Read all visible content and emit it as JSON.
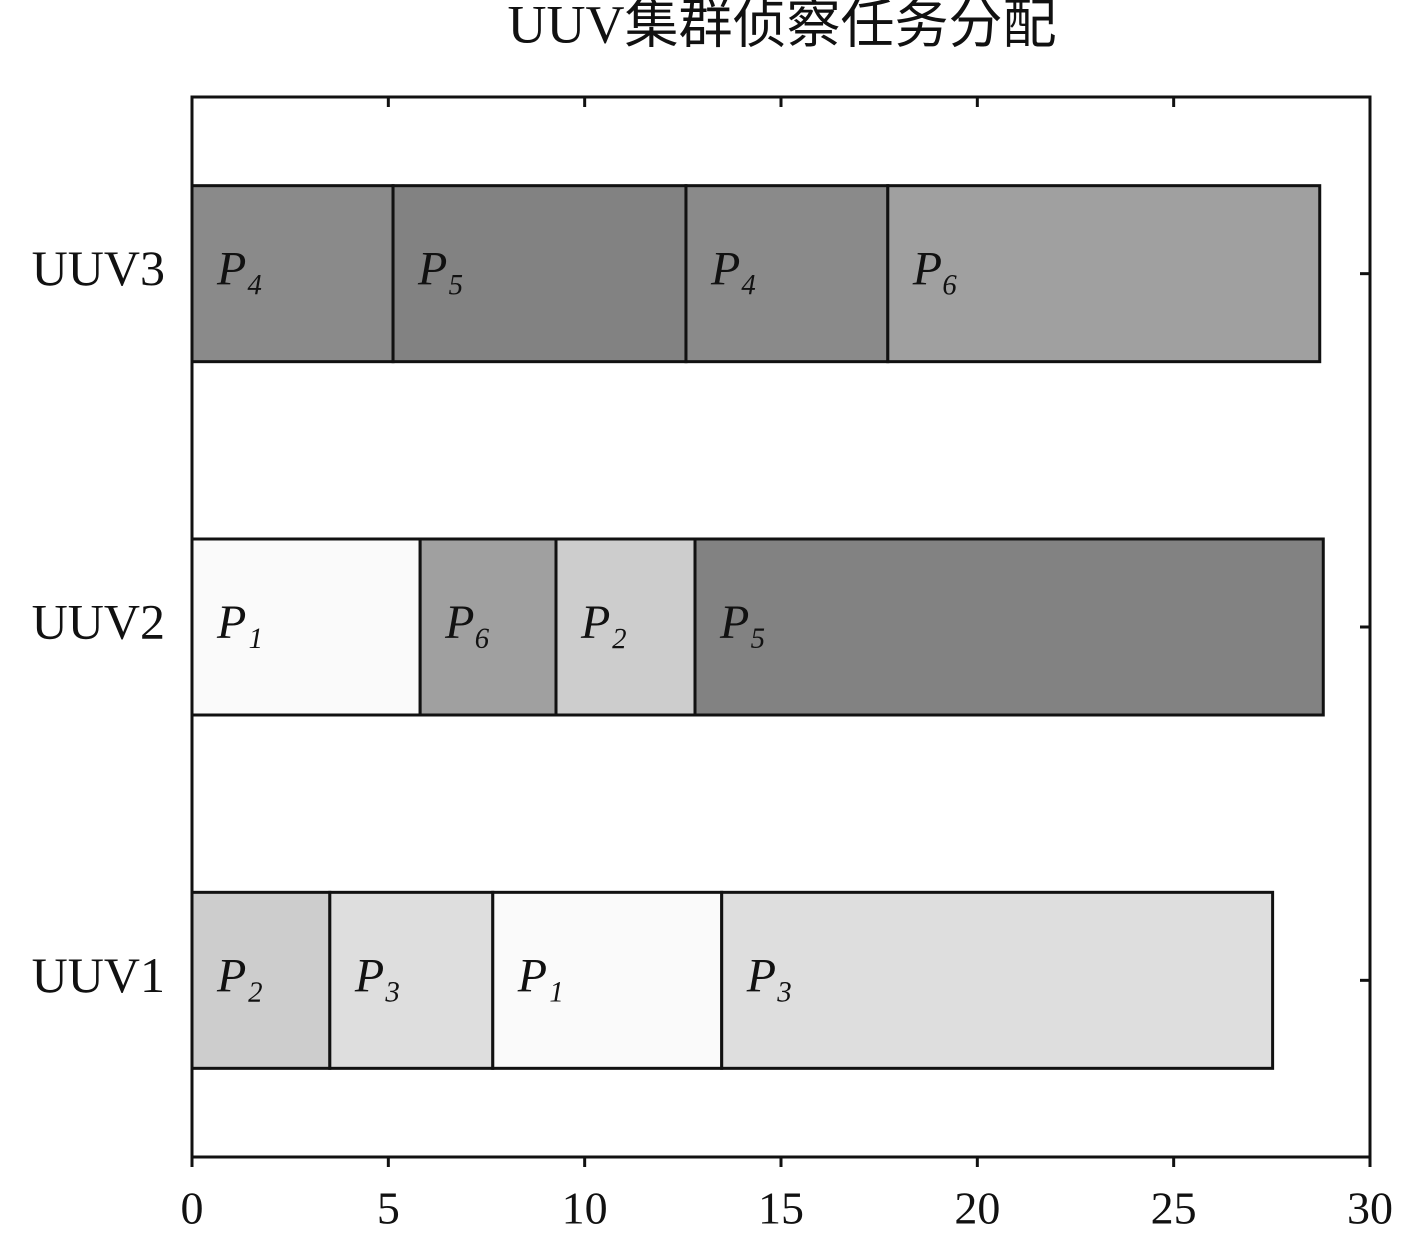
{
  "chart_data": {
    "type": "gantt",
    "title": "UUV集群侦察任务分配",
    "categories": [
      "UUV1",
      "UUV2",
      "UUV3"
    ],
    "rows": [
      {
        "segments": [
          {
            "task": "P₂",
            "value": 3.51,
            "color": "#cdcdcd"
          },
          {
            "task": "P₃",
            "value": 4.15,
            "color": "#dedede"
          },
          {
            "task": "P₁",
            "value": 5.83,
            "color": "#fafafa"
          },
          {
            "task": "P₃",
            "value": 14.03,
            "color": "#dedede"
          }
        ]
      },
      {
        "segments": [
          {
            "task": "P₁",
            "value": 5.81,
            "color": "#fafafa"
          },
          {
            "task": "P₆",
            "value": 3.46,
            "color": "#a0a0a0"
          },
          {
            "task": "P₂",
            "value": 3.54,
            "color": "#cdcdcd"
          },
          {
            "task": "P₅",
            "value": 16.0,
            "color": "#828282"
          }
        ]
      },
      {
        "segments": [
          {
            "task": "P₄",
            "value": 5.12,
            "color": "#8a8a8a"
          },
          {
            "task": "P₅",
            "value": 7.46,
            "color": "#828282"
          },
          {
            "task": "P₄",
            "value": 5.14,
            "color": "#8a8a8a"
          },
          {
            "task": "P₆",
            "value": 11.0,
            "color": "#a0a0a0"
          }
        ]
      }
    ],
    "xlim": [
      0,
      30
    ],
    "xticks": [
      0,
      5,
      10,
      15,
      20,
      25,
      30
    ]
  }
}
